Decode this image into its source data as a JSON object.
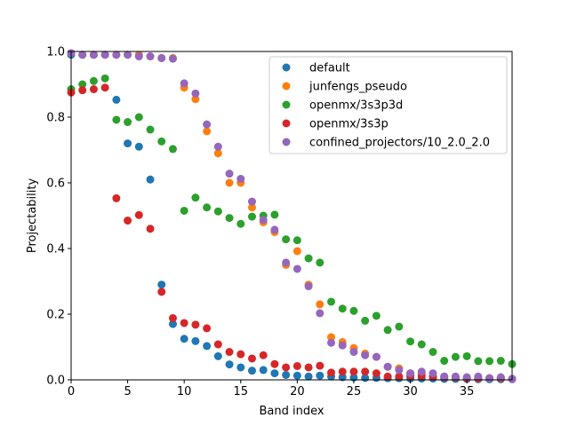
{
  "chart_data": {
    "type": "scatter",
    "xlabel": "Band index",
    "ylabel": "Projectability",
    "xlim": [
      0,
      39
    ],
    "ylim": [
      0.0,
      1.0
    ],
    "xticks": [
      0,
      5,
      10,
      15,
      20,
      25,
      30,
      35
    ],
    "yticks": [
      0.0,
      0.2,
      0.4,
      0.6,
      0.8,
      1.0
    ],
    "xtick_labels": [
      "0",
      "5",
      "10",
      "15",
      "20",
      "25",
      "30",
      "35"
    ],
    "ytick_labels": [
      "0.0",
      "0.2",
      "0.4",
      "0.6",
      "0.8",
      "1.0"
    ],
    "grid": false,
    "legend_position": "top-right",
    "series": [
      {
        "name": "default",
        "color": "#1f77b4",
        "x": [
          0,
          1,
          2,
          3,
          4,
          5,
          6,
          7,
          8,
          9,
          10,
          11,
          12,
          13,
          14,
          15,
          16,
          17,
          18,
          19,
          20,
          21,
          22,
          23,
          24,
          25,
          26,
          27,
          28,
          29,
          30,
          31,
          32,
          33,
          34,
          35,
          36,
          37,
          38,
          39
        ],
        "y": [
          0.99,
          0.99,
          0.99,
          0.99,
          0.853,
          0.72,
          0.71,
          0.61,
          0.29,
          0.17,
          0.125,
          0.118,
          0.103,
          0.072,
          0.047,
          0.038,
          0.028,
          0.03,
          0.02,
          0.015,
          0.013,
          0.01,
          0.013,
          0.01,
          0.008,
          0.007,
          0.006,
          0.006,
          0.005,
          0.005,
          0.004,
          0.004,
          0.004,
          0.003,
          0.003,
          0.003,
          0.002,
          0.002,
          0.002,
          0.002
        ]
      },
      {
        "name": "junfengs_pseudo",
        "color": "#ff7f0e",
        "x": [
          0,
          1,
          2,
          3,
          4,
          5,
          6,
          7,
          8,
          9,
          10,
          11,
          12,
          13,
          14,
          15,
          16,
          17,
          18,
          19,
          20,
          21,
          22,
          23,
          24,
          25,
          26,
          27,
          28,
          29,
          30,
          31,
          32,
          33,
          34,
          35,
          36,
          37,
          38,
          39
        ],
        "y": [
          0.995,
          0.99,
          0.99,
          0.99,
          0.99,
          0.99,
          0.99,
          0.985,
          0.98,
          0.98,
          0.89,
          0.855,
          0.757,
          0.69,
          0.6,
          0.6,
          0.525,
          0.48,
          0.45,
          0.35,
          0.392,
          0.29,
          0.23,
          0.13,
          0.115,
          0.097,
          0.08,
          0.07,
          0.04,
          0.035,
          0.02,
          0.02,
          0.01,
          0.01,
          0.008,
          0.005,
          0.005,
          0.005,
          0.005,
          0.003
        ]
      },
      {
        "name": "openmx/3s3p3d",
        "color": "#2ca02c",
        "x": [
          0,
          1,
          2,
          3,
          4,
          5,
          6,
          7,
          8,
          9,
          10,
          11,
          12,
          13,
          14,
          15,
          16,
          17,
          18,
          19,
          20,
          21,
          22,
          23,
          24,
          25,
          26,
          27,
          28,
          29,
          30,
          31,
          32,
          33,
          34,
          35,
          36,
          37,
          38,
          39
        ],
        "y": [
          0.885,
          0.9,
          0.91,
          0.918,
          0.792,
          0.785,
          0.8,
          0.762,
          0.726,
          0.703,
          0.515,
          0.555,
          0.525,
          0.513,
          0.493,
          0.475,
          0.497,
          0.5,
          0.503,
          0.428,
          0.425,
          0.37,
          0.357,
          0.238,
          0.217,
          0.21,
          0.18,
          0.195,
          0.152,
          0.162,
          0.117,
          0.108,
          0.085,
          0.058,
          0.07,
          0.072,
          0.057,
          0.057,
          0.058,
          0.048
        ]
      },
      {
        "name": "openmx/3s3p",
        "color": "#d62728",
        "x": [
          0,
          1,
          2,
          3,
          4,
          5,
          6,
          7,
          8,
          9,
          10,
          11,
          12,
          13,
          14,
          15,
          16,
          17,
          18,
          19,
          20,
          21,
          22,
          23,
          24,
          25,
          26,
          27,
          28,
          29,
          30,
          31,
          32,
          33,
          34,
          35,
          36,
          37,
          38,
          39
        ],
        "y": [
          0.875,
          0.882,
          0.885,
          0.89,
          0.553,
          0.485,
          0.502,
          0.46,
          0.268,
          0.188,
          0.173,
          0.168,
          0.157,
          0.108,
          0.085,
          0.078,
          0.065,
          0.075,
          0.048,
          0.038,
          0.042,
          0.038,
          0.043,
          0.022,
          0.025,
          0.025,
          0.025,
          0.02,
          0.01,
          0.01,
          0.012,
          0.012,
          0.01,
          0.008,
          0.008,
          0.005,
          0.005,
          0.005,
          0.005,
          0.003
        ]
      },
      {
        "name": "confined_projectors/10_2.0_2.0",
        "color": "#9467bd",
        "x": [
          0,
          1,
          2,
          3,
          4,
          5,
          6,
          7,
          8,
          9,
          10,
          11,
          12,
          13,
          14,
          15,
          16,
          17,
          18,
          19,
          20,
          21,
          22,
          23,
          24,
          25,
          26,
          27,
          28,
          29,
          30,
          31,
          32,
          33,
          34,
          35,
          36,
          37,
          38,
          39
        ],
        "y": [
          0.995,
          0.99,
          0.99,
          0.99,
          0.99,
          0.99,
          0.985,
          0.985,
          0.98,
          0.978,
          0.903,
          0.872,
          0.778,
          0.71,
          0.628,
          0.612,
          0.543,
          0.487,
          0.457,
          0.357,
          0.338,
          0.285,
          0.203,
          0.113,
          0.105,
          0.085,
          0.075,
          0.07,
          0.04,
          0.03,
          0.02,
          0.025,
          0.02,
          0.01,
          0.01,
          0.008,
          0.01,
          0.005,
          0.008,
          0.003
        ]
      }
    ]
  }
}
